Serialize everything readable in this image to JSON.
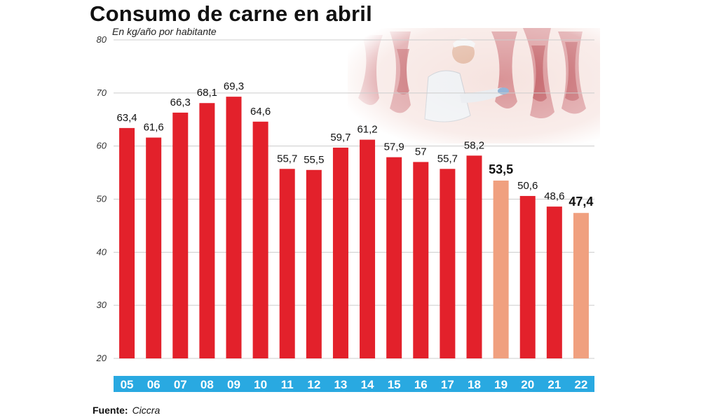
{
  "title": "Consumo de carne en abril",
  "subtitle": "En kg/año por habitante",
  "source": {
    "label": "Fuente:",
    "value": "Ciccra"
  },
  "colors": {
    "bar": "#e3212b",
    "bar_highlight": "#f0a07f",
    "axis_band": "#29a9e1",
    "axis_text": "#ffffff",
    "grid": "#cccccc"
  },
  "photo": {
    "icon": "butcher-photo"
  },
  "chart_data": {
    "type": "bar",
    "title": "Consumo de carne en abril",
    "subtitle": "En kg/año por habitante",
    "xlabel": "",
    "ylabel": "",
    "ylim": [
      20,
      80
    ],
    "yticks": [
      20,
      30,
      40,
      50,
      60,
      70,
      80
    ],
    "grid": true,
    "categories": [
      "05",
      "06",
      "07",
      "08",
      "09",
      "10",
      "11",
      "12",
      "13",
      "14",
      "15",
      "16",
      "17",
      "18",
      "19",
      "20",
      "21",
      "22"
    ],
    "values": [
      63.4,
      61.6,
      66.3,
      68.1,
      69.3,
      64.6,
      55.7,
      55.5,
      59.7,
      61.2,
      57.9,
      57,
      55.7,
      58.2,
      53.5,
      50.6,
      48.6,
      47.4
    ],
    "labels": [
      "63,4",
      "61,6",
      "66,3",
      "68,1",
      "69,3",
      "64,6",
      "55,7",
      "55,5",
      "59,7",
      "61,2",
      "57,9",
      "57",
      "55,7",
      "58,2",
      "53,5",
      "50,6",
      "48,6",
      "47,4"
    ],
    "highlighted": [
      "19",
      "22"
    ],
    "bold_labels": [
      "19",
      "22"
    ]
  }
}
